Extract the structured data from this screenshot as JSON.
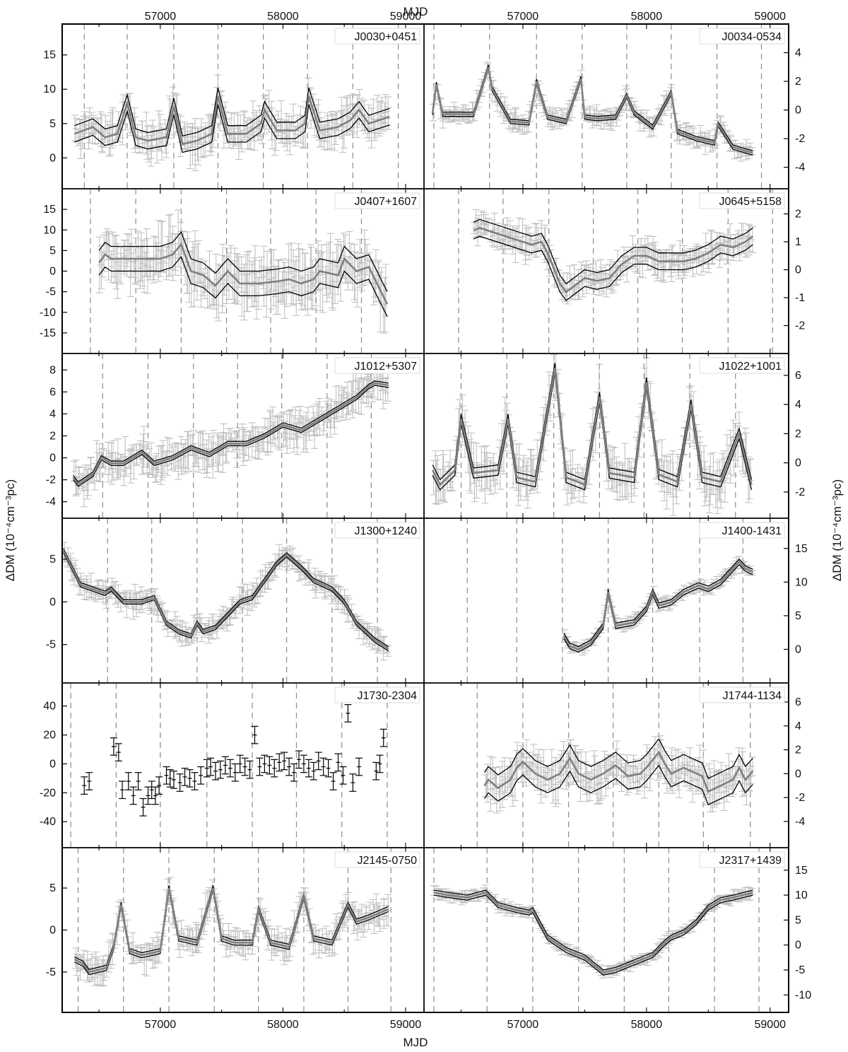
{
  "figure": {
    "top_xlabel": "MJD",
    "bottom_xlabel": "MJD",
    "left_ylabel": "ΔDM (10⁻⁴cm⁻³pc)",
    "right_ylabel": "ΔDM (10⁻⁴cm⁻³pc)",
    "x_range": [
      56200,
      59150
    ],
    "x_ticks": [
      57000,
      58000,
      59000
    ],
    "colors": {
      "model": "#7f7f7f",
      "bounds": "#000000",
      "errorbars": "#bdbdbd",
      "epochs": "#8c8c8c"
    }
  },
  "chart_data": [
    {
      "type": "line",
      "title": "J0030+0451",
      "ylim": [
        -4.5,
        19.5
      ],
      "yticks": [
        0,
        5,
        10,
        15
      ],
      "axis": "left",
      "epochs": [
        56380,
        56730,
        57110,
        57470,
        57840,
        58200,
        58570,
        58940
      ],
      "x": [
        56300,
        56450,
        56550,
        56650,
        56730,
        56800,
        56900,
        57050,
        57110,
        57180,
        57300,
        57420,
        57470,
        57550,
        57700,
        57820,
        57850,
        57950,
        58100,
        58180,
        58210,
        58300,
        58450,
        58550,
        58620,
        58700,
        58870
      ],
      "y": [
        3.5,
        4.5,
        3.0,
        3.5,
        8.0,
        3.0,
        2.5,
        3.0,
        7.5,
        2.0,
        2.5,
        3.5,
        9.0,
        3.5,
        3.5,
        5.0,
        7.0,
        4.0,
        4.0,
        5.0,
        9.0,
        4.0,
        4.5,
        5.5,
        7.0,
        5.0,
        6.0
      ],
      "band": 1.2,
      "scatter": 2.5
    },
    {
      "type": "line",
      "title": "J0034-0534",
      "ylim": [
        -5.5,
        6.0
      ],
      "yticks": [
        -4,
        -2,
        0,
        2,
        4
      ],
      "axis": "right",
      "epochs": [
        56280,
        56730,
        57110,
        57480,
        57840,
        58200,
        58570,
        58930
      ],
      "x": [
        56270,
        56300,
        56350,
        56450,
        56600,
        56720,
        56750,
        56900,
        57050,
        57110,
        57200,
        57350,
        57470,
        57500,
        57600,
        57750,
        57840,
        57900,
        58050,
        58200,
        58250,
        58400,
        58550,
        58580,
        58700,
        58860
      ],
      "y": [
        -0.2,
        1.8,
        -0.3,
        -0.3,
        -0.3,
        3.0,
        1.5,
        -0.8,
        -0.9,
        2.0,
        -0.5,
        -0.8,
        2.2,
        -0.5,
        -0.6,
        -0.5,
        1.0,
        -0.2,
        -1.2,
        1.2,
        -1.5,
        -2.0,
        -2.3,
        -1.0,
        -2.6,
        -3.0
      ],
      "band": 0.15,
      "scatter": 0.6
    },
    {
      "type": "line",
      "title": "J0407+1607",
      "ylim": [
        -20,
        20
      ],
      "yticks": [
        -15,
        -10,
        -5,
        0,
        5,
        10,
        15
      ],
      "axis": "left",
      "epochs": [
        56430,
        56800,
        57170,
        57540,
        57900,
        58270,
        58640
      ],
      "x": [
        56500,
        56550,
        56600,
        56700,
        56850,
        57000,
        57100,
        57170,
        57250,
        57350,
        57450,
        57550,
        57650,
        57800,
        57950,
        58050,
        58150,
        58250,
        58300,
        58450,
        58500,
        58600,
        58700,
        58850
      ],
      "y": [
        2.0,
        4.0,
        3.0,
        3.0,
        3.0,
        3.0,
        4.0,
        6.5,
        0.0,
        -1.0,
        -3.5,
        0.0,
        -3.0,
        -3.0,
        -2.5,
        -2.0,
        -3.0,
        -2.0,
        0.0,
        -1.0,
        3.0,
        0.0,
        1.0,
        -8.0
      ],
      "band": 3.0,
      "scatter": 6.0
    },
    {
      "type": "line",
      "title": "J0645+5158",
      "ylim": [
        -3.0,
        2.9
      ],
      "yticks": [
        -2,
        -1,
        0,
        1,
        2
      ],
      "axis": "right",
      "epochs": [
        56480,
        56840,
        57210,
        57570,
        57930,
        58290,
        58660,
        59020
      ],
      "x": [
        56600,
        56650,
        57070,
        57150,
        57200,
        57300,
        57350,
        57500,
        57600,
        57700,
        57800,
        57900,
        58000,
        58100,
        58200,
        58300,
        58400,
        58500,
        58600,
        58700,
        58800,
        58860
      ],
      "y": [
        1.4,
        1.5,
        0.9,
        1.0,
        0.6,
        -0.5,
        -0.8,
        -0.3,
        -0.4,
        -0.3,
        0.2,
        0.5,
        0.5,
        0.3,
        0.3,
        0.3,
        0.4,
        0.6,
        0.9,
        0.8,
        1.0,
        1.2
      ],
      "band": 0.3,
      "scatter": 0.5
    },
    {
      "type": "line",
      "title": "J1012+5307",
      "ylim": [
        -5.5,
        9.5
      ],
      "yticks": [
        -4,
        -2,
        0,
        2,
        4,
        6,
        8
      ],
      "axis": "left",
      "epochs": [
        56530,
        56900,
        57270,
        57630,
        57990,
        58360,
        58720
      ],
      "x": [
        56290,
        56330,
        56450,
        56520,
        56600,
        56700,
        56850,
        56950,
        57100,
        57250,
        57400,
        57550,
        57700,
        57850,
        58000,
        58150,
        58300,
        58450,
        58600,
        58700,
        58750,
        58860
      ],
      "y": [
        -1.8,
        -2.4,
        -1.5,
        0.0,
        -0.5,
        -0.5,
        0.5,
        -0.5,
        0.0,
        0.9,
        0.3,
        1.3,
        1.3,
        2.0,
        3.0,
        2.5,
        3.5,
        4.5,
        5.5,
        6.5,
        6.8,
        6.6
      ],
      "band": 0.2,
      "scatter": 1.5
    },
    {
      "type": "line",
      "title": "J1022+1001",
      "ylim": [
        -3.8,
        7.5
      ],
      "yticks": [
        -2,
        0,
        2,
        4,
        6
      ],
      "axis": "right",
      "epochs": [
        56500,
        56870,
        57250,
        57620,
        57980,
        58350,
        58720
      ],
      "x": [
        56270,
        56330,
        56450,
        56500,
        56600,
        56800,
        56880,
        56950,
        57100,
        57260,
        57350,
        57500,
        57620,
        57700,
        57900,
        58000,
        58100,
        58250,
        58360,
        58450,
        58600,
        58750,
        58850
      ],
      "y": [
        -0.5,
        -1.5,
        -0.5,
        3.0,
        -0.7,
        -0.5,
        3.0,
        -1.0,
        -1.3,
        6.5,
        -1.0,
        -1.5,
        4.5,
        -0.7,
        -1.0,
        5.5,
        -0.8,
        -1.3,
        4.0,
        -1.0,
        -1.3,
        2.0,
        -1.5
      ],
      "band": 0.35,
      "scatter": 1.5
    },
    {
      "type": "line",
      "title": "J1300+1240",
      "ylim": [
        -9.5,
        9.8
      ],
      "yticks": [
        -5,
        0,
        5
      ],
      "axis": "left",
      "epochs": [
        56570,
        56930,
        57300,
        57670,
        58030,
        58400,
        58770
      ],
      "x": [
        56210,
        56350,
        56550,
        56600,
        56700,
        56850,
        56950,
        57050,
        57150,
        57250,
        57300,
        57350,
        57450,
        57550,
        57650,
        57750,
        57850,
        57950,
        58030,
        58150,
        58250,
        58400,
        58500,
        58600,
        58750,
        58860
      ],
      "y": [
        6.0,
        2.0,
        1.0,
        1.5,
        0.0,
        0.0,
        0.5,
        -2.5,
        -3.5,
        -4.0,
        -2.5,
        -3.5,
        -3.0,
        -1.5,
        0.0,
        0.5,
        2.5,
        4.5,
        5.5,
        4.0,
        2.5,
        1.5,
        0.0,
        -2.5,
        -4.5,
        -5.5
      ],
      "band": 0.25,
      "scatter": 1.2
    },
    {
      "type": "line",
      "title": "J1400-1431",
      "ylim": [
        -5.0,
        19.5
      ],
      "yticks": [
        0,
        5,
        10,
        15
      ],
      "axis": "right",
      "epochs": [
        56550,
        56950,
        57320,
        57690,
        58050,
        58430,
        58780
      ],
      "x": [
        57330,
        57380,
        57450,
        57550,
        57650,
        57690,
        57750,
        57900,
        58000,
        58050,
        58100,
        58200,
        58300,
        58420,
        58500,
        58600,
        58650,
        58750,
        58800,
        58860
      ],
      "y": [
        2.0,
        0.5,
        0.0,
        1.0,
        3.5,
        8.5,
        3.5,
        4.0,
        6.0,
        8.5,
        6.5,
        7.0,
        8.5,
        9.5,
        9.0,
        10.0,
        11.0,
        13.0,
        12.0,
        11.5
      ],
      "band": 0.4,
      "scatter": 0.8
    },
    {
      "type": "scatter",
      "title": "J1730-2304",
      "ylim": [
        -58,
        56
      ],
      "yticks": [
        -40,
        -20,
        0,
        20,
        40
      ],
      "axis": "left",
      "epochs": [
        56270,
        56640,
        57000,
        57380,
        57750,
        58110,
        58480,
        58850
      ],
      "x": [
        56380,
        56420,
        56620,
        56660,
        56690,
        56740,
        56780,
        56820,
        56860,
        56900,
        56930,
        56960,
        56990,
        57050,
        57080,
        57110,
        57160,
        57200,
        57240,
        57280,
        57330,
        57380,
        57410,
        57450,
        57490,
        57530,
        57570,
        57610,
        57650,
        57690,
        57730,
        57770,
        57810,
        57850,
        57890,
        57930,
        57970,
        58010,
        58050,
        58090,
        58130,
        58170,
        58210,
        58250,
        58290,
        58330,
        58370,
        58410,
        58450,
        58490,
        58530,
        58570,
        58620,
        58760,
        58790,
        58820
      ],
      "y": [
        -15,
        -12,
        12,
        8,
        -18,
        -12,
        -22,
        -12,
        -30,
        -22,
        -18,
        -22,
        -15,
        -8,
        -10,
        -11,
        -13,
        -9,
        -10,
        -12,
        -8,
        -3,
        -2,
        -5,
        -4,
        -1,
        -3,
        -6,
        0,
        -2,
        -4,
        20,
        -2,
        0,
        -1,
        -3,
        1,
        2,
        -2,
        -6,
        3,
        0,
        -3,
        -5,
        2,
        -2,
        -3,
        -12,
        1,
        -8,
        35,
        -13,
        -2,
        -5,
        0,
        18
      ],
      "err": 6
    },
    {
      "type": "line",
      "title": "J1744-1134",
      "ylim": [
        -6.2,
        7.6
      ],
      "yticks": [
        -4,
        -2,
        0,
        2,
        4,
        6
      ],
      "axis": "right",
      "epochs": [
        56630,
        57000,
        57370,
        57730,
        58100,
        58460,
        58840
      ],
      "x": [
        56690,
        56720,
        56800,
        56900,
        56950,
        57000,
        57100,
        57200,
        57300,
        57380,
        57450,
        57550,
        57650,
        57750,
        57850,
        57950,
        58000,
        58100,
        58150,
        58200,
        58300,
        58450,
        58500,
        58600,
        58700,
        58750,
        58800,
        58860
      ],
      "y": [
        -1.0,
        -0.5,
        -1.2,
        -0.5,
        0.5,
        1.0,
        0.0,
        -0.5,
        0.0,
        1.3,
        0.0,
        -0.5,
        0.0,
        0.7,
        -0.2,
        0.0,
        0.5,
        1.8,
        0.8,
        0.0,
        0.5,
        -0.2,
        -1.5,
        -1.0,
        -0.5,
        0.5,
        -0.5,
        0.2
      ],
      "band": 1.1,
      "scatter": 1.5
    },
    {
      "type": "line",
      "title": "J2145-0750",
      "ylim": [
        -9.8,
        9.8
      ],
      "yticks": [
        -5,
        0,
        5
      ],
      "axis": "left",
      "epochs": [
        56330,
        56700,
        57070,
        57440,
        57800,
        58170,
        58530,
        58880
      ],
      "x": [
        56300,
        56370,
        56420,
        56560,
        56620,
        56680,
        56750,
        56850,
        57000,
        57070,
        57150,
        57300,
        57430,
        57500,
        57600,
        57750,
        57800,
        57900,
        58050,
        58170,
        58250,
        58400,
        58530,
        58600,
        58700,
        58860
      ],
      "y": [
        -3.5,
        -4.0,
        -5.0,
        -4.5,
        -2.0,
        3.0,
        -2.5,
        -3.0,
        -2.5,
        5.0,
        -1.0,
        -1.5,
        5.0,
        -1.0,
        -1.5,
        -1.5,
        2.5,
        -1.5,
        -2.0,
        4.0,
        -1.0,
        -1.5,
        3.0,
        1.0,
        1.5,
        2.5
      ],
      "band": 0.3,
      "scatter": 1.5
    },
    {
      "type": "line",
      "title": "J2317+1439",
      "ylim": [
        -13.5,
        19.5
      ],
      "yticks": [
        -10,
        -5,
        0,
        5,
        10,
        15
      ],
      "axis": "right",
      "epochs": [
        56280,
        56710,
        57080,
        57450,
        57820,
        58180,
        58550,
        58910
      ],
      "x": [
        56280,
        56400,
        56550,
        56700,
        56800,
        56950,
        57050,
        57080,
        57200,
        57350,
        57500,
        57650,
        57750,
        57850,
        57950,
        58050,
        58150,
        58200,
        58300,
        58400,
        58500,
        58600,
        58700,
        58860
      ],
      "y": [
        10.5,
        10.0,
        9.5,
        10.5,
        8.0,
        7.0,
        6.5,
        7.0,
        1.5,
        -1.0,
        -2.5,
        -5.5,
        -5.0,
        -4.0,
        -3.0,
        -2.0,
        0.5,
        1.5,
        2.5,
        4.5,
        7.5,
        9.0,
        9.5,
        10.5
      ],
      "band": 0.5,
      "scatter": 1.0
    }
  ]
}
